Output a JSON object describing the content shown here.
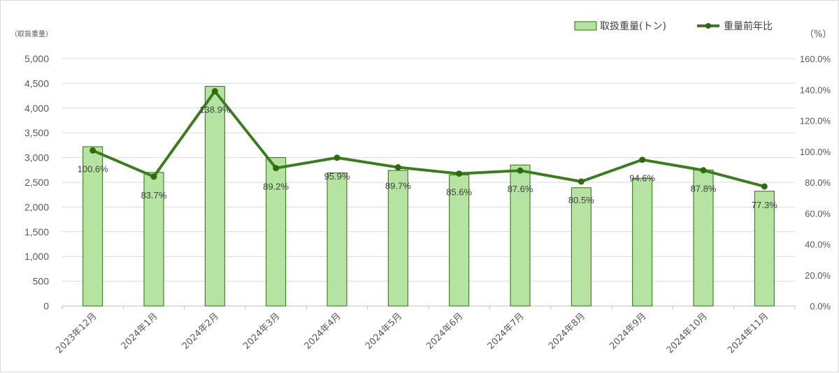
{
  "chart_data": {
    "type": "bar",
    "categories": [
      "2023年12月",
      "2024年1月",
      "2024年2月",
      "2024年3月",
      "2024年4月",
      "2024年5月",
      "2024年6月",
      "2024年7月",
      "2024年8月",
      "2024年9月",
      "2024年10月",
      "2024年11月"
    ],
    "series": [
      {
        "name": "取扱重量(トン)",
        "type": "bar",
        "axis": "left",
        "color": "#b4e3a2",
        "edge_color": "#2e6b0a",
        "values": [
          3220,
          2700,
          4440,
          3000,
          2690,
          2740,
          2650,
          2850,
          2390,
          2580,
          2750,
          2320
        ]
      },
      {
        "name": "重量前年比",
        "type": "line",
        "axis": "right",
        "color": "#3a7d1e",
        "values": [
          100.6,
          83.7,
          138.9,
          89.2,
          95.9,
          89.7,
          85.6,
          87.6,
          80.5,
          94.6,
          87.8,
          77.3
        ],
        "labels": [
          "100.6%",
          "83.7%",
          "138.9%",
          "89.2%",
          "95.9%",
          "89.7%",
          "85.6%",
          "87.6%",
          "80.5%",
          "94.6%",
          "87.8%",
          "77.3%"
        ]
      }
    ],
    "y_left": {
      "unit_label": "（取扱重量）",
      "ylim": [
        0,
        5000
      ],
      "ticks": [
        0,
        500,
        1000,
        1500,
        2000,
        2500,
        3000,
        3500,
        4000,
        4500,
        5000
      ],
      "tick_labels": [
        "0",
        "500",
        "1,000",
        "1,500",
        "2,000",
        "2,500",
        "3,000",
        "3,500",
        "4,000",
        "4,500",
        "5,000"
      ]
    },
    "y_right": {
      "unit_label": "（%）",
      "ylim": [
        0,
        160
      ],
      "ticks": [
        0,
        20,
        40,
        60,
        80,
        100,
        120,
        140,
        160
      ],
      "tick_labels": [
        "0.0%",
        "20.0%",
        "40.0%",
        "60.0%",
        "80.0%",
        "100.0%",
        "120.0%",
        "140.0%",
        "160.0%"
      ]
    },
    "grid": true,
    "legend_position": "top-right"
  }
}
